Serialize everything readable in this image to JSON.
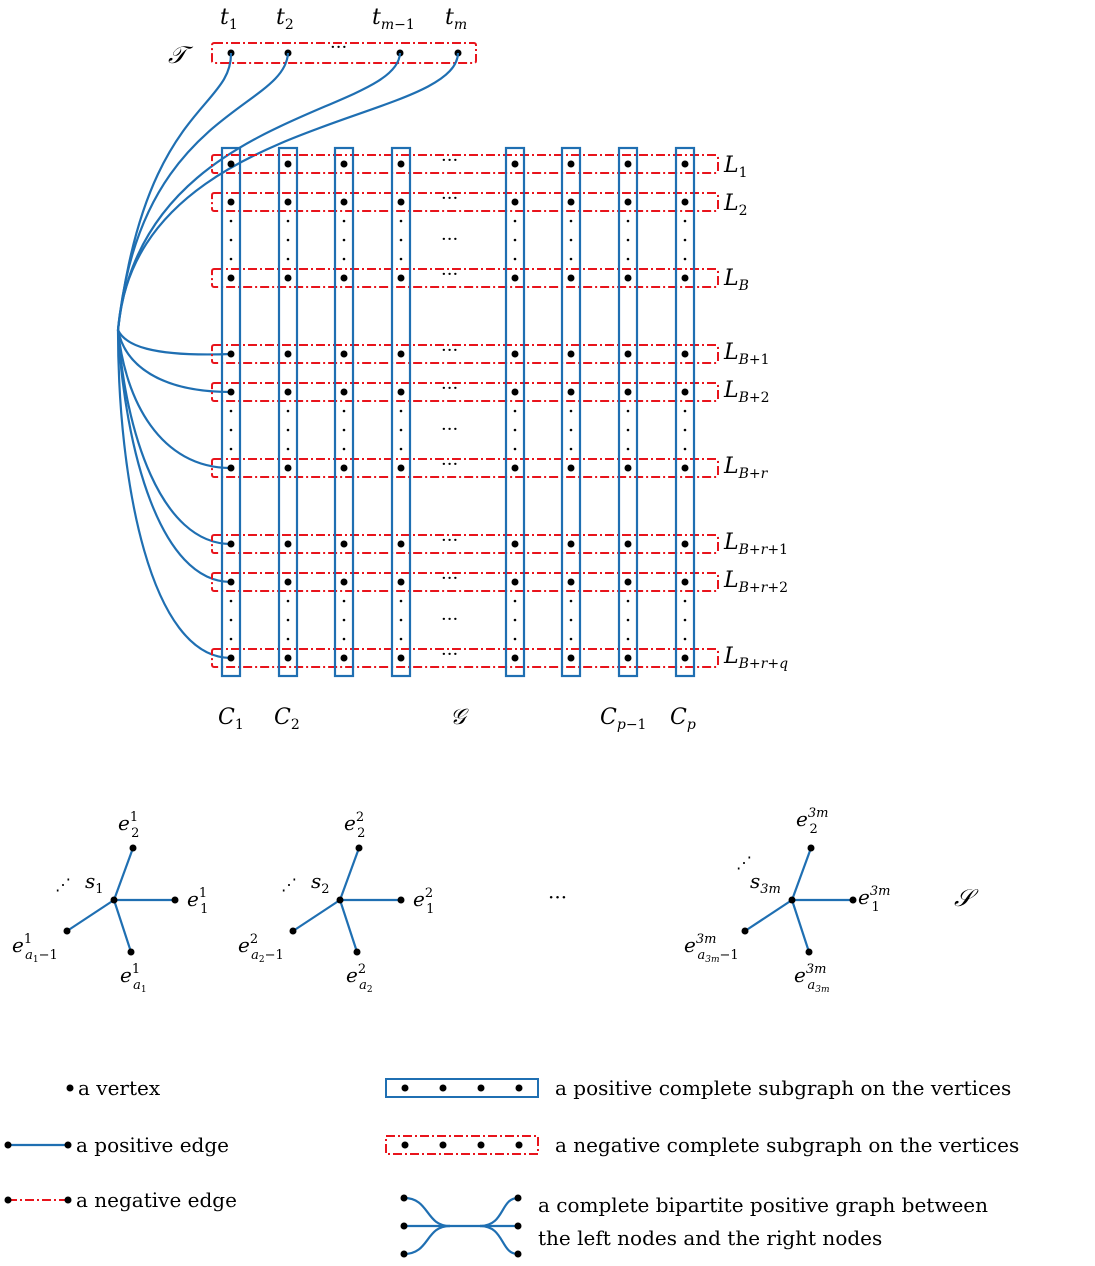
{
  "colors": {
    "positive": "#1f6fb2",
    "negative": "#e8141c",
    "vertex": "#000000"
  },
  "terminal_set": {
    "label": "𝒯",
    "vertex_labels": [
      "t1",
      "t2",
      "tm−1",
      "tm"
    ],
    "ellipsis": "···"
  },
  "grid": {
    "label": "𝒢",
    "column_labels": [
      "C1",
      "C2",
      "Cp−1",
      "Cp"
    ],
    "row_labels": [
      "L1",
      "L2",
      "LB",
      "LB+1",
      "LB+2",
      "LB+r",
      "LB+r+1",
      "LB+r+2",
      "LB+r+q"
    ],
    "ellipsis_h": "···"
  },
  "stars": {
    "label": "𝒮",
    "ellipsis": "···",
    "items": [
      {
        "center": "s1",
        "e_top": "e12",
        "e_right": "e11",
        "e_left": "e1a1−1",
        "e_bottom": "e1a1"
      },
      {
        "center": "s2",
        "e_top": "e22",
        "e_right": "e21",
        "e_left": "e2a2−1",
        "e_bottom": "e2a2"
      },
      {
        "center": "s3m",
        "e_top": "e3m2",
        "e_right": "e3m1",
        "e_left": "e3ma3m−1",
        "e_bottom": "e3ma3m"
      }
    ]
  },
  "legend": {
    "vertex": "a vertex",
    "positive_edge": "a positive edge",
    "negative_edge": "a negative edge",
    "positive_subgraph": "a positive complete subgraph on the vertices",
    "negative_subgraph": "a negative complete subgraph on the vertices",
    "bipartite_line1": "a complete bipartite positive graph between",
    "bipartite_line2": "the left nodes and the right nodes"
  }
}
